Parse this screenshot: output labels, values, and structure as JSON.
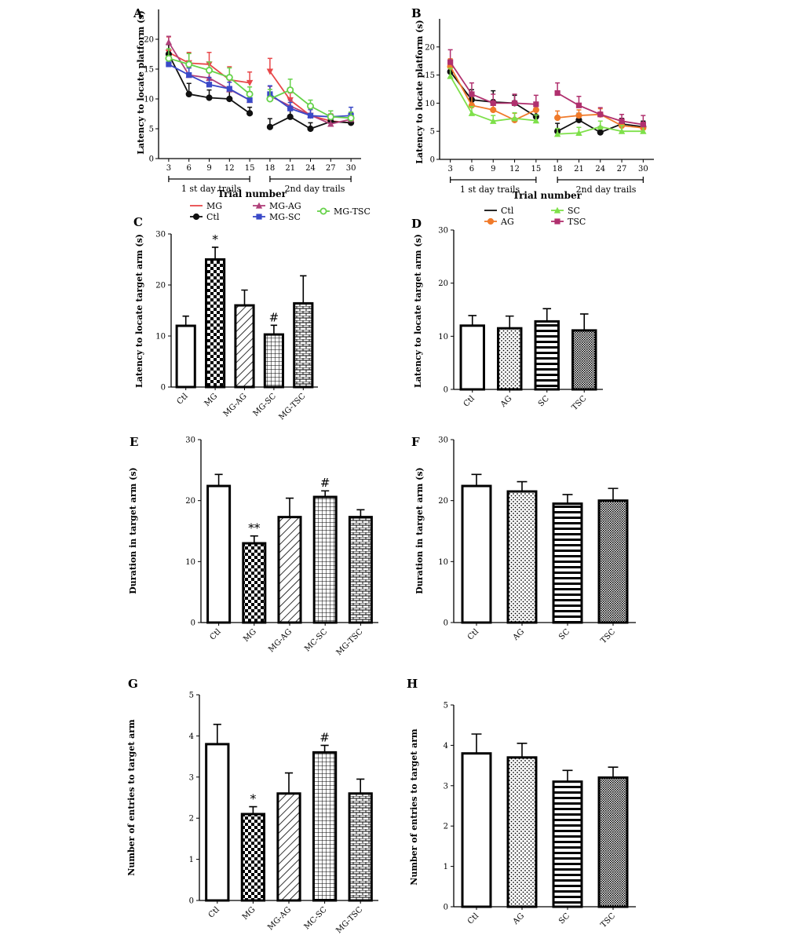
{
  "panels": [
    {
      "id": "A",
      "letter": "A",
      "type": "line",
      "ylabel": "Latency to locate platform (s)",
      "ylim": [
        0,
        25
      ],
      "yticks": [
        0,
        5,
        10,
        15,
        20
      ],
      "xticks": [
        3,
        6,
        9,
        12,
        15,
        18,
        21,
        24,
        27,
        30
      ],
      "day_labels": [
        "1 st day trails",
        "2nd day trails"
      ],
      "xlabel": "Trial number",
      "series": [
        {
          "name": "MG",
          "color": "#e8484a",
          "marker": "triangle-down",
          "segments": [
            {
              "x": [
                3,
                6,
                9,
                12,
                15
              ],
              "y": [
                17.8,
                16,
                15.8,
                13.2,
                12.7
              ],
              "err": [
                2.6,
                1.8,
                2,
                2.2,
                1.8
              ]
            },
            {
              "x": [
                18,
                21,
                24,
                27,
                30
              ],
              "y": [
                14.6,
                9.8,
                7.2,
                6.3,
                6
              ],
              "err": [
                2.2,
                1.2,
                1,
                1.2,
                1
              ]
            }
          ]
        },
        {
          "name": "Ctl",
          "color": "#111111",
          "marker": "circle",
          "segments": [
            {
              "x": [
                3,
                6,
                9,
                12,
                15
              ],
              "y": [
                17.5,
                10.8,
                10.2,
                10,
                7.6
              ],
              "err": [
                1.6,
                1.8,
                1.3,
                1.2,
                1
              ]
            },
            {
              "x": [
                18,
                21,
                24,
                27,
                30
              ],
              "y": [
                5.3,
                7,
                5,
                6.2,
                6
              ],
              "err": [
                1.4,
                1.4,
                1,
                1,
                1
              ]
            }
          ]
        },
        {
          "name": "MG-AG",
          "color": "#b0407a",
          "marker": "triangle",
          "segments": [
            {
              "x": [
                3,
                6,
                9,
                12,
                15
              ],
              "y": [
                19.5,
                14,
                13.5,
                11.6,
                9.8
              ],
              "err": [
                1,
                1.2,
                1,
                1.6,
                1.4
              ]
            },
            {
              "x": [
                18,
                21,
                24,
                27,
                30
              ],
              "y": [
                10.5,
                8.8,
                7.3,
                5.8,
                6.6
              ],
              "err": [
                1.6,
                1,
                1,
                1,
                1
              ]
            }
          ]
        },
        {
          "name": "MG-SC",
          "color": "#3a49c8",
          "marker": "square",
          "segments": [
            {
              "x": [
                3,
                6,
                9,
                12,
                15
              ],
              "y": [
                15.8,
                14,
                12.4,
                11.7,
                9.8
              ],
              "err": [
                1,
                1.2,
                1.2,
                1.1,
                1
              ]
            },
            {
              "x": [
                18,
                21,
                24,
                27,
                30
              ],
              "y": [
                10.8,
                8.4,
                7.2,
                7,
                7.2
              ],
              "err": [
                1.4,
                1,
                1,
                1,
                1.4
              ]
            }
          ]
        },
        {
          "name": "MG-TSC",
          "color": "#66d24a",
          "marker": "circle-open",
          "segments": [
            {
              "x": [
                3,
                6,
                9,
                12,
                15
              ],
              "y": [
                16.8,
                15.8,
                14.8,
                13.6,
                10.8
              ],
              "err": [
                1.6,
                1.8,
                1.4,
                1.6,
                1.2
              ]
            },
            {
              "x": [
                18,
                21,
                24,
                27,
                30
              ],
              "y": [
                10,
                11.5,
                8.8,
                7,
                6.8
              ],
              "err": [
                1.6,
                1.8,
                1,
                1,
                1
              ]
            }
          ]
        }
      ],
      "legend": [
        {
          "name": "MG",
          "color": "#e8484a",
          "marker": "line"
        },
        {
          "name": "Ctl",
          "color": "#111111",
          "marker": "circle"
        },
        {
          "name": "MG-AG",
          "color": "#b0407a",
          "marker": "triangle"
        },
        {
          "name": "MG-SC",
          "color": "#3a49c8",
          "marker": "square"
        },
        {
          "name": "MG-TSC",
          "color": "#66d24a",
          "marker": "circle-open"
        }
      ]
    },
    {
      "id": "B",
      "letter": "B",
      "type": "line",
      "ylabel": "Latency to locate platform (s)",
      "ylim": [
        0,
        25
      ],
      "yticks": [
        0,
        5,
        10,
        15,
        20
      ],
      "xticks": [
        3,
        6,
        9,
        12,
        15,
        18,
        21,
        24,
        27,
        30
      ],
      "day_labels": [
        "1 st day trails",
        "2nd day trails"
      ],
      "xlabel": "Trial number",
      "series": [
        {
          "name": "Ctl",
          "color": "#111111",
          "marker": "circle",
          "segments": [
            {
              "x": [
                3,
                6,
                9,
                12,
                15
              ],
              "y": [
                15.6,
                10.6,
                10.2,
                10,
                7.6
              ],
              "err": [
                1.6,
                1.8,
                2,
                1.4,
                1
              ]
            },
            {
              "x": [
                18,
                21,
                24,
                27,
                30
              ],
              "y": [
                5,
                7,
                4.8,
                6.3,
                5.8
              ],
              "err": [
                1.4,
                1.2,
                1,
                1,
                1
              ]
            }
          ]
        },
        {
          "name": "AG",
          "color": "#f07a2a",
          "marker": "circle",
          "segments": [
            {
              "x": [
                3,
                6,
                9,
                12,
                15
              ],
              "y": [
                16.5,
                9.6,
                8.8,
                7,
                8.8
              ],
              "err": [
                1.4,
                1.6,
                1.4,
                1.2,
                1
              ]
            },
            {
              "x": [
                18,
                21,
                24,
                27,
                30
              ],
              "y": [
                7.4,
                7.8,
                8,
                6,
                5.6
              ],
              "err": [
                1.2,
                1,
                1,
                1,
                1
              ]
            }
          ]
        },
        {
          "name": "SC",
          "color": "#7ee04a",
          "marker": "triangle",
          "segments": [
            {
              "x": [
                3,
                6,
                9,
                12,
                15
              ],
              "y": [
                14.8,
                8.2,
                6.8,
                7.3,
                6.9
              ],
              "err": [
                1.4,
                1.2,
                1,
                1,
                1
              ]
            },
            {
              "x": [
                18,
                21,
                24,
                27,
                30
              ],
              "y": [
                4.5,
                4.7,
                5.8,
                5,
                5
              ],
              "err": [
                1,
                1,
                1,
                1,
                1
              ]
            }
          ]
        },
        {
          "name": "TSC",
          "color": "#b0306e",
          "marker": "square",
          "segments": [
            {
              "x": [
                3,
                6,
                9,
                12,
                15
              ],
              "y": [
                17.3,
                11.6,
                10,
                10,
                9.8
              ],
              "err": [
                2.2,
                2,
                1.6,
                1.6,
                1.6
              ]
            },
            {
              "x": [
                18,
                21,
                24,
                27,
                30
              ],
              "y": [
                11.8,
                9.6,
                8,
                6.8,
                6.2
              ],
              "err": [
                1.8,
                1.6,
                1.2,
                1.2,
                1.6
              ]
            }
          ]
        }
      ],
      "legend": [
        {
          "name": "Ctl",
          "color": "#111111",
          "marker": "line"
        },
        {
          "name": "SC",
          "color": "#7ee04a",
          "marker": "triangle"
        },
        {
          "name": "AG",
          "color": "#f07a2a",
          "marker": "circle"
        },
        {
          "name": "TSC",
          "color": "#b0306e",
          "marker": "square"
        }
      ]
    },
    {
      "id": "C",
      "letter": "C",
      "type": "bar",
      "ylabel": "Latency to locate target arm (s)",
      "ylim": [
        0,
        30
      ],
      "yticks": [
        0,
        10,
        20,
        30
      ],
      "categories": [
        "Ctl",
        "MG",
        "MG-AG",
        "MG-SC",
        "MG-TSC"
      ],
      "values": [
        12,
        25,
        16,
        10.3,
        16.4
      ],
      "errors": [
        1.9,
        2.4,
        3,
        1.8,
        5.4
      ],
      "patterns": [
        "none",
        "checker",
        "diag",
        "grid",
        "brick"
      ],
      "annotations": [
        "",
        "*",
        "",
        "#",
        ""
      ]
    },
    {
      "id": "D",
      "letter": "D",
      "type": "bar",
      "ylabel": "Latency to locate target arm (s)",
      "ylim": [
        0,
        30
      ],
      "yticks": [
        0,
        10,
        20,
        30
      ],
      "categories": [
        "Ctl",
        "AG",
        "SC",
        "TSC"
      ],
      "values": [
        12,
        11.5,
        12.8,
        11.1
      ],
      "errors": [
        1.9,
        2.3,
        2.4,
        3.1
      ],
      "patterns": [
        "none",
        "dots",
        "hstripe",
        "fine"
      ],
      "annotations": [
        "",
        "",
        "",
        ""
      ]
    },
    {
      "id": "E",
      "letter": "E",
      "type": "bar",
      "ylabel": "Duration in target arm (s)",
      "ylim": [
        0,
        30
      ],
      "yticks": [
        0,
        10,
        20,
        30
      ],
      "categories": [
        "Ctl",
        "MG",
        "MG-AG",
        "MC-SC",
        "MG-TSC"
      ],
      "values": [
        22.4,
        13,
        17.3,
        20.6,
        17.3
      ],
      "errors": [
        1.9,
        1.2,
        3.1,
        1,
        1.2
      ],
      "patterns": [
        "none",
        "checker",
        "diag",
        "grid",
        "brick"
      ],
      "annotations": [
        "",
        "**",
        "",
        "#",
        ""
      ]
    },
    {
      "id": "F",
      "letter": "F",
      "type": "bar",
      "ylabel": "Duration in target arm (s)",
      "ylim": [
        0,
        30
      ],
      "yticks": [
        0,
        10,
        20,
        30
      ],
      "categories": [
        "Ctl",
        "AG",
        "SC",
        "TSC"
      ],
      "values": [
        22.4,
        21.5,
        19.5,
        20
      ],
      "errors": [
        1.9,
        1.6,
        1.5,
        2
      ],
      "patterns": [
        "none",
        "dots",
        "hstripe",
        "fine"
      ],
      "annotations": [
        "",
        "",
        "",
        ""
      ]
    },
    {
      "id": "G",
      "letter": "G",
      "type": "bar",
      "ylabel": "Number of entries to target arm",
      "ylim": [
        0,
        5
      ],
      "yticks": [
        0,
        1,
        2,
        3,
        4,
        5
      ],
      "categories": [
        "Ctl",
        "MG",
        "MG-AG",
        "MC-SC",
        "MG-TSC"
      ],
      "values": [
        3.8,
        2.1,
        2.6,
        3.6,
        2.6
      ],
      "errors": [
        0.48,
        0.18,
        0.5,
        0.17,
        0.35
      ],
      "patterns": [
        "none",
        "checker",
        "diag",
        "grid",
        "brick"
      ],
      "annotations": [
        "",
        "*",
        "",
        "#",
        ""
      ]
    },
    {
      "id": "H",
      "letter": "H",
      "type": "bar",
      "ylabel": "Number of entries to target arm",
      "ylim": [
        0,
        5
      ],
      "yticks": [
        0,
        1,
        2,
        3,
        4,
        5
      ],
      "categories": [
        "Ctl",
        "AG",
        "SC",
        "TSC"
      ],
      "values": [
        3.8,
        3.7,
        3.1,
        3.2
      ],
      "errors": [
        0.48,
        0.35,
        0.28,
        0.26
      ],
      "patterns": [
        "none",
        "dots",
        "hstripe",
        "fine"
      ],
      "annotations": [
        "",
        "",
        "",
        ""
      ]
    }
  ]
}
